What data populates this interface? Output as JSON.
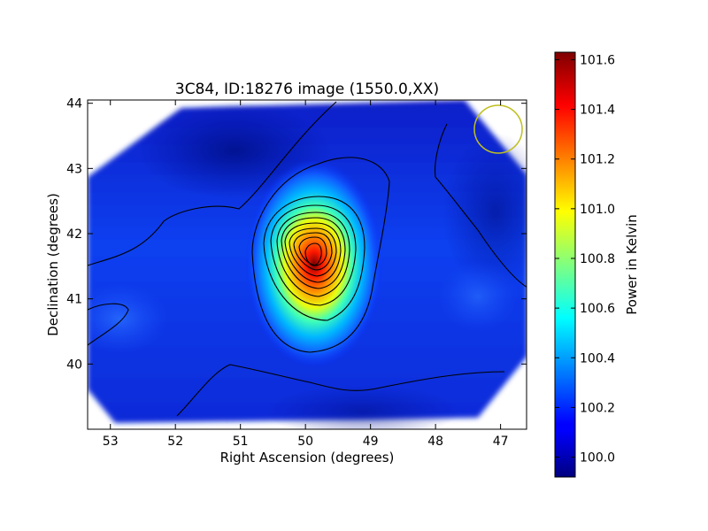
{
  "chart_data": {
    "type": "heatmap",
    "title": "3C84, ID:18276 image (1550.0,XX)",
    "xlabel": "Right Ascension (degrees)",
    "ylabel": "Declination (degrees)",
    "xlim": [
      53.35,
      46.6
    ],
    "ylim": [
      39.0,
      44.05
    ],
    "x_ticks": [
      53,
      52,
      51,
      50,
      49,
      48,
      47
    ],
    "y_ticks": [
      40,
      41,
      42,
      43,
      44
    ],
    "colorbar": {
      "label": "Power in Kelvin",
      "range": [
        99.92,
        101.63
      ],
      "ticks": [
        "100.0",
        "100.2",
        "100.4",
        "100.6",
        "100.8",
        "101.0",
        "101.2",
        "101.4",
        "101.6"
      ],
      "tick_values": [
        100.0,
        100.2,
        100.4,
        100.6,
        100.8,
        101.0,
        101.2,
        101.4,
        101.6
      ],
      "colormap": "jet"
    },
    "peak": {
      "ra": 49.9,
      "dec": 41.6,
      "value": 101.63
    },
    "beam_marker": {
      "ra": 47.0,
      "dec": 43.55,
      "color": "#bfbf20"
    },
    "contour_count": 12
  }
}
